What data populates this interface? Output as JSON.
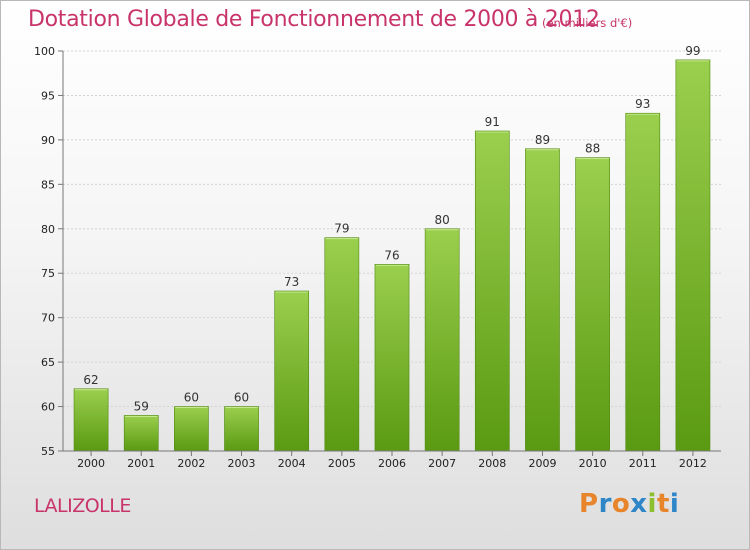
{
  "header": {
    "title": "Dotation Globale de Fonctionnement de 2000 à 2012",
    "subtitle": "(en milliers d'€)"
  },
  "footer": {
    "commune": "LALIZOLLE",
    "logo_text": "Proxiti"
  },
  "colors": {
    "title": "#c8346a",
    "bar_top": "#9bcf4e",
    "bar_bottom": "#5a9a12"
  },
  "chart_data": {
    "type": "bar",
    "title": "Dotation Globale de Fonctionnement de 2000 à 2012",
    "subtitle": "(en milliers d'€)",
    "xlabel": "",
    "ylabel": "",
    "categories": [
      "2000",
      "2001",
      "2002",
      "2003",
      "2004",
      "2005",
      "2006",
      "2007",
      "2008",
      "2009",
      "2010",
      "2011",
      "2012"
    ],
    "values": [
      62,
      59,
      60,
      60,
      73,
      79,
      76,
      80,
      91,
      89,
      88,
      93,
      99
    ],
    "ylim": [
      55,
      100
    ],
    "yticks": [
      55,
      60,
      65,
      70,
      75,
      80,
      85,
      90,
      95,
      100
    ],
    "grid": true,
    "legend": "none"
  }
}
